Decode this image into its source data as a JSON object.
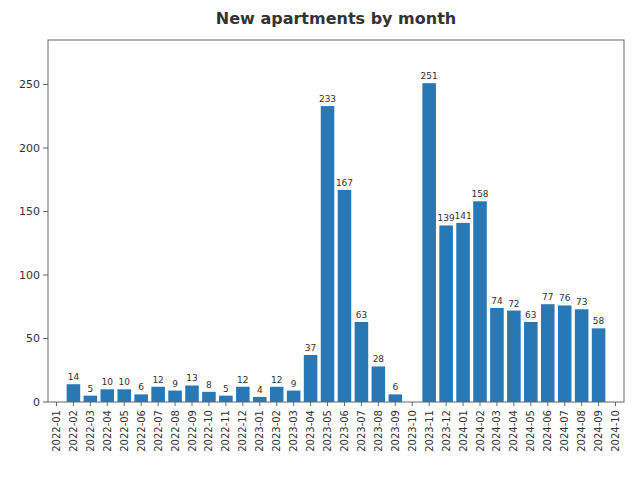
{
  "chart_data": {
    "type": "bar",
    "title": "New apartments by month",
    "categories": [
      "2022-01",
      "2022-02",
      "2022-03",
      "2022-04",
      "2022-05",
      "2022-06",
      "2022-07",
      "2022-08",
      "2022-09",
      "2022-10",
      "2022-11",
      "2022-12",
      "2023-01",
      "2023-02",
      "2023-03",
      "2023-04",
      "2023-05",
      "2023-06",
      "2023-07",
      "2023-08",
      "2023-09",
      "2023-10",
      "2023-11",
      "2023-12",
      "2024-01",
      "2024-02",
      "2024-03",
      "2024-04",
      "2024-05",
      "2024-06",
      "2024-07",
      "2024-08",
      "2024-09",
      "2024-10"
    ],
    "values": [
      0,
      14,
      5,
      10,
      10,
      6,
      12,
      9,
      13,
      8,
      5,
      12,
      4,
      12,
      9,
      37,
      233,
      167,
      63,
      28,
      6,
      0,
      251,
      139,
      141,
      158,
      74,
      72,
      63,
      77,
      76,
      73,
      58,
      0
    ],
    "color": "#2878b5",
    "ylim": [
      0,
      285
    ],
    "yticks": [
      0,
      50,
      100,
      150,
      200,
      250
    ],
    "grid": false,
    "data_labels": true
  }
}
